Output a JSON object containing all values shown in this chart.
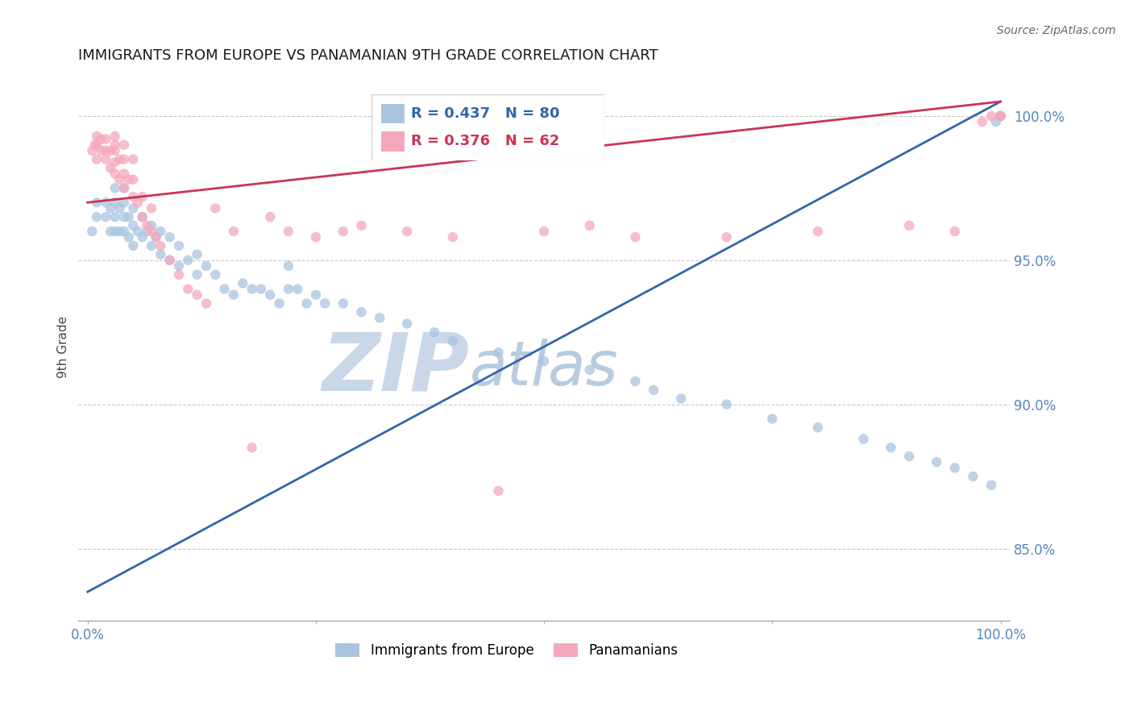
{
  "title": "IMMIGRANTS FROM EUROPE VS PANAMANIAN 9TH GRADE CORRELATION CHART",
  "source_text": "Source: ZipAtlas.com",
  "ylabel": "9th Grade",
  "ytick_labels": [
    "100.0%",
    "95.0%",
    "90.0%",
    "85.0%"
  ],
  "ytick_values": [
    1.0,
    0.95,
    0.9,
    0.85
  ],
  "xlim": [
    -0.01,
    1.01
  ],
  "ylim": [
    0.825,
    1.015
  ],
  "legend_blue_label": "Immigrants from Europe",
  "legend_pink_label": "Panamanians",
  "legend_R_blue": "R = 0.437",
  "legend_N_blue": "N = 80",
  "legend_R_pink": "R = 0.376",
  "legend_N_pink": "N = 62",
  "blue_color": "#aac4e0",
  "pink_color": "#f4a8bc",
  "blue_line_color": "#3366aa",
  "pink_line_color": "#cc3355",
  "blue_x": [
    0.005,
    0.01,
    0.01,
    0.02,
    0.02,
    0.025,
    0.025,
    0.03,
    0.03,
    0.03,
    0.03,
    0.035,
    0.035,
    0.04,
    0.04,
    0.04,
    0.04,
    0.045,
    0.045,
    0.05,
    0.05,
    0.05,
    0.055,
    0.06,
    0.06,
    0.065,
    0.07,
    0.07,
    0.075,
    0.08,
    0.08,
    0.09,
    0.09,
    0.1,
    0.1,
    0.11,
    0.12,
    0.12,
    0.13,
    0.14,
    0.15,
    0.16,
    0.17,
    0.18,
    0.19,
    0.2,
    0.21,
    0.22,
    0.22,
    0.23,
    0.24,
    0.25,
    0.26,
    0.28,
    0.3,
    0.32,
    0.35,
    0.38,
    0.4,
    0.45,
    0.5,
    0.55,
    0.6,
    0.62,
    0.65,
    0.7,
    0.75,
    0.8,
    0.85,
    0.88,
    0.9,
    0.93,
    0.95,
    0.97,
    0.99,
    0.995,
    1.0,
    1.0,
    1.0,
    1.0
  ],
  "blue_y": [
    0.96,
    0.965,
    0.97,
    0.965,
    0.97,
    0.96,
    0.968,
    0.96,
    0.965,
    0.97,
    0.975,
    0.96,
    0.968,
    0.96,
    0.965,
    0.97,
    0.975,
    0.958,
    0.965,
    0.955,
    0.962,
    0.968,
    0.96,
    0.958,
    0.965,
    0.96,
    0.955,
    0.962,
    0.958,
    0.952,
    0.96,
    0.95,
    0.958,
    0.948,
    0.955,
    0.95,
    0.945,
    0.952,
    0.948,
    0.945,
    0.94,
    0.938,
    0.942,
    0.94,
    0.94,
    0.938,
    0.935,
    0.94,
    0.948,
    0.94,
    0.935,
    0.938,
    0.935,
    0.935,
    0.932,
    0.93,
    0.928,
    0.925,
    0.922,
    0.918,
    0.915,
    0.912,
    0.908,
    0.905,
    0.902,
    0.9,
    0.895,
    0.892,
    0.888,
    0.885,
    0.882,
    0.88,
    0.878,
    0.875,
    0.872,
    0.998,
    1.0,
    1.0,
    1.0,
    1.0
  ],
  "pink_x": [
    0.005,
    0.008,
    0.01,
    0.01,
    0.01,
    0.015,
    0.015,
    0.02,
    0.02,
    0.02,
    0.025,
    0.025,
    0.03,
    0.03,
    0.03,
    0.03,
    0.03,
    0.035,
    0.035,
    0.04,
    0.04,
    0.04,
    0.04,
    0.045,
    0.05,
    0.05,
    0.05,
    0.055,
    0.06,
    0.06,
    0.065,
    0.07,
    0.07,
    0.075,
    0.08,
    0.09,
    0.1,
    0.11,
    0.12,
    0.13,
    0.14,
    0.16,
    0.18,
    0.2,
    0.22,
    0.25,
    0.28,
    0.3,
    0.35,
    0.4,
    0.45,
    0.5,
    0.55,
    0.6,
    0.7,
    0.8,
    0.9,
    0.95,
    0.98,
    0.99,
    1.0,
    1.0
  ],
  "pink_y": [
    0.988,
    0.99,
    0.985,
    0.99,
    0.993,
    0.988,
    0.992,
    0.985,
    0.988,
    0.992,
    0.982,
    0.988,
    0.98,
    0.984,
    0.988,
    0.99,
    0.993,
    0.978,
    0.985,
    0.975,
    0.98,
    0.985,
    0.99,
    0.978,
    0.972,
    0.978,
    0.985,
    0.97,
    0.965,
    0.972,
    0.962,
    0.96,
    0.968,
    0.958,
    0.955,
    0.95,
    0.945,
    0.94,
    0.938,
    0.935,
    0.968,
    0.96,
    0.885,
    0.965,
    0.96,
    0.958,
    0.96,
    0.962,
    0.96,
    0.958,
    0.87,
    0.96,
    0.962,
    0.958,
    0.958,
    0.96,
    0.962,
    0.96,
    0.998,
    1.0,
    1.0,
    1.0
  ],
  "blue_marker_size": 9,
  "pink_marker_size": 9,
  "watermark_ZIP_color": "#c8d8e8",
  "watermark_atlas_color": "#b8cce0",
  "grid_color": "#c8c8c8",
  "tick_color": "#5588bb",
  "title_color": "#1a1a1a",
  "title_fontsize": 13,
  "blue_line_y0": 0.835,
  "blue_line_y1": 1.005,
  "pink_line_y0": 0.97,
  "pink_line_y1": 1.005
}
